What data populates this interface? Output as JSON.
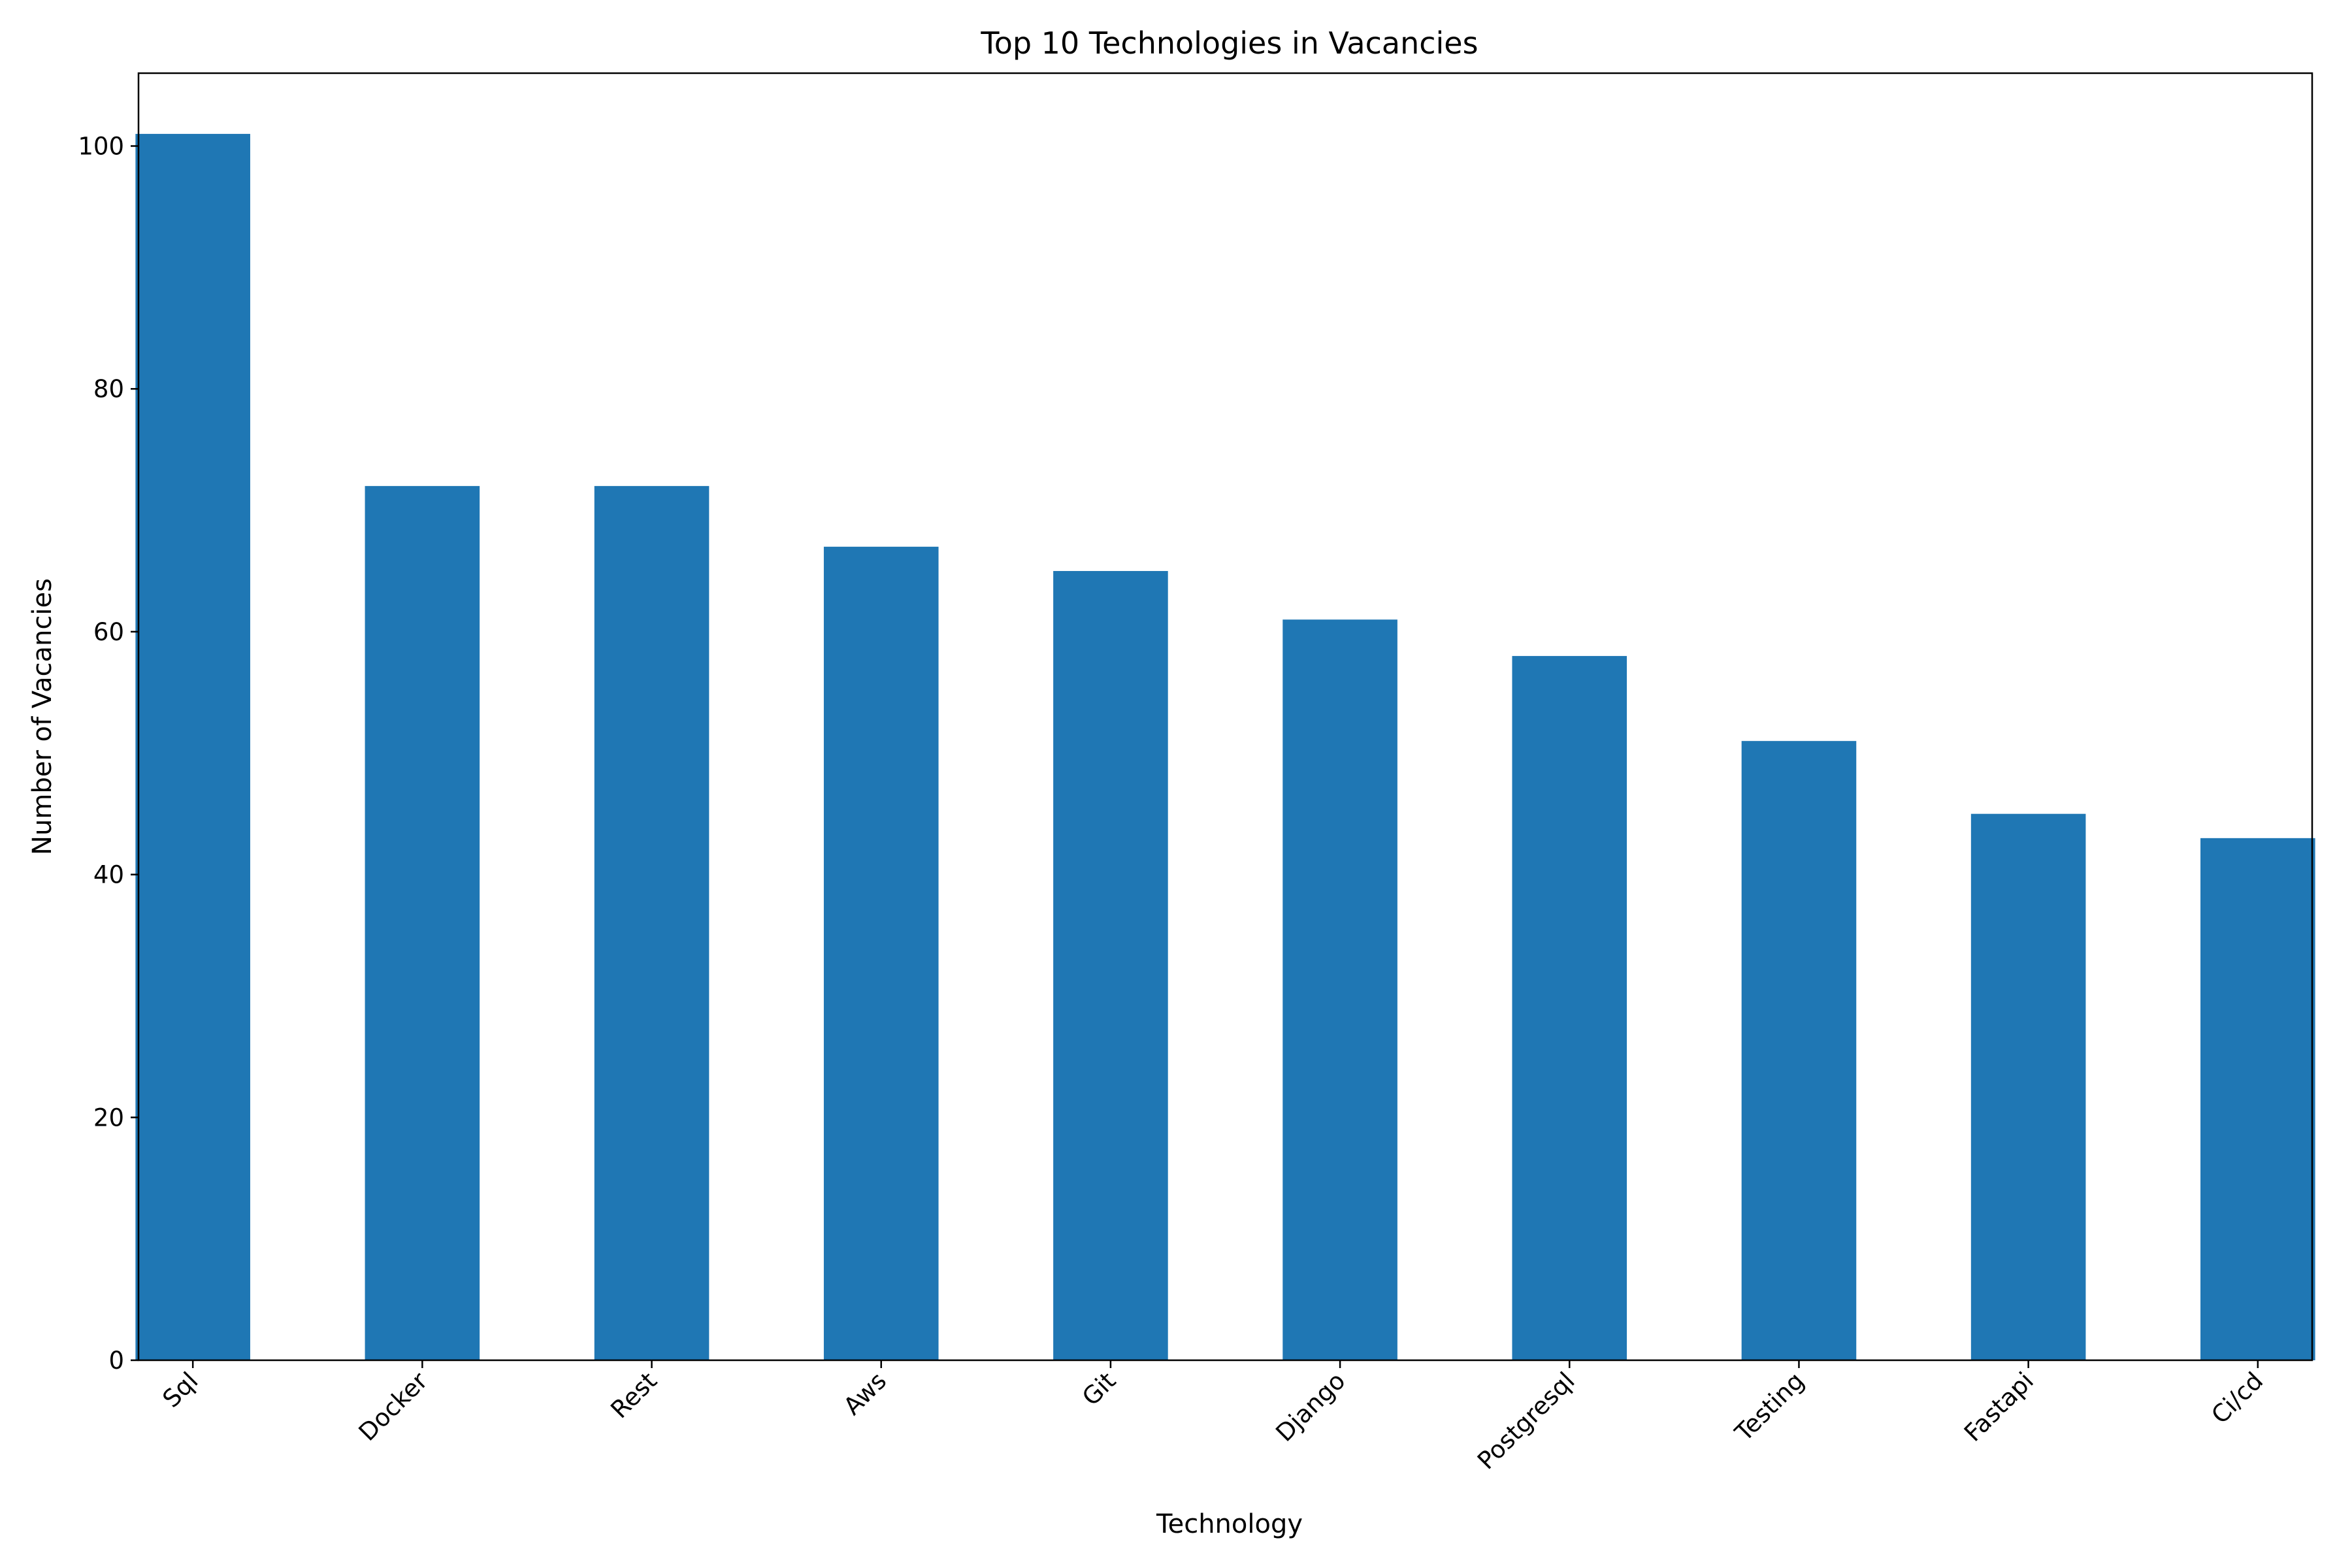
{
  "chart_data": {
    "type": "bar",
    "title": "Top 10 Technologies in Vacancies",
    "xlabel": "Technology",
    "ylabel": "Number of Vacancies",
    "categories": [
      "Sql",
      "Docker",
      "Rest",
      "Aws",
      "Git",
      "Django",
      "Postgresql",
      "Testing",
      "Fastapi",
      "Ci/cd"
    ],
    "values": [
      101,
      72,
      72,
      67,
      65,
      61,
      58,
      51,
      45,
      43
    ],
    "ylim": [
      0,
      106
    ],
    "yticks": [
      0,
      20,
      40,
      60,
      80,
      100
    ],
    "bar_color": "#1f77b4",
    "grid": false,
    "legend": "none"
  }
}
